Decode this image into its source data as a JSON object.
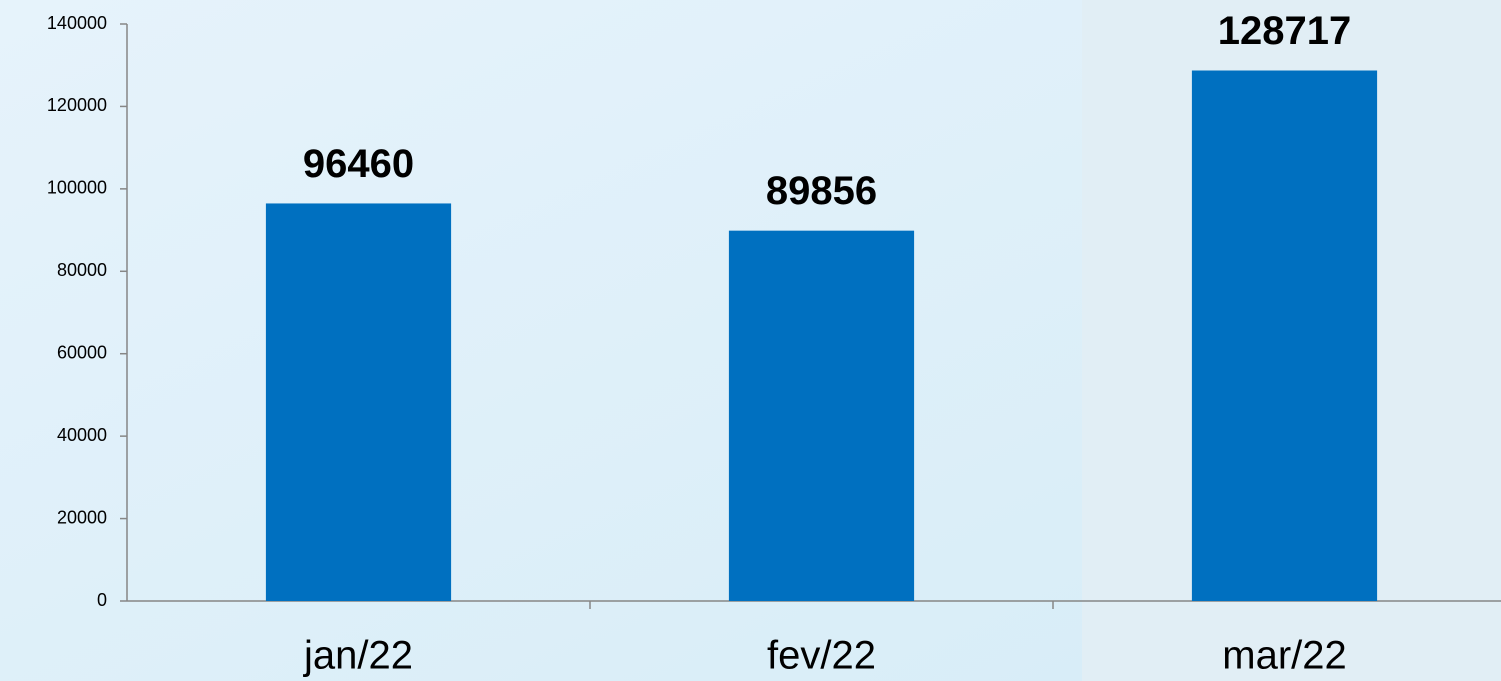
{
  "chart_data": {
    "type": "bar",
    "categories": [
      "jan/22",
      "fev/22",
      "mar/22"
    ],
    "values": [
      96460,
      89856,
      128717
    ],
    "color": "#0070c0",
    "ylim": [
      0,
      140000
    ],
    "yticks": [
      0,
      20000,
      40000,
      60000,
      80000,
      100000,
      120000,
      140000
    ],
    "grid": false
  }
}
